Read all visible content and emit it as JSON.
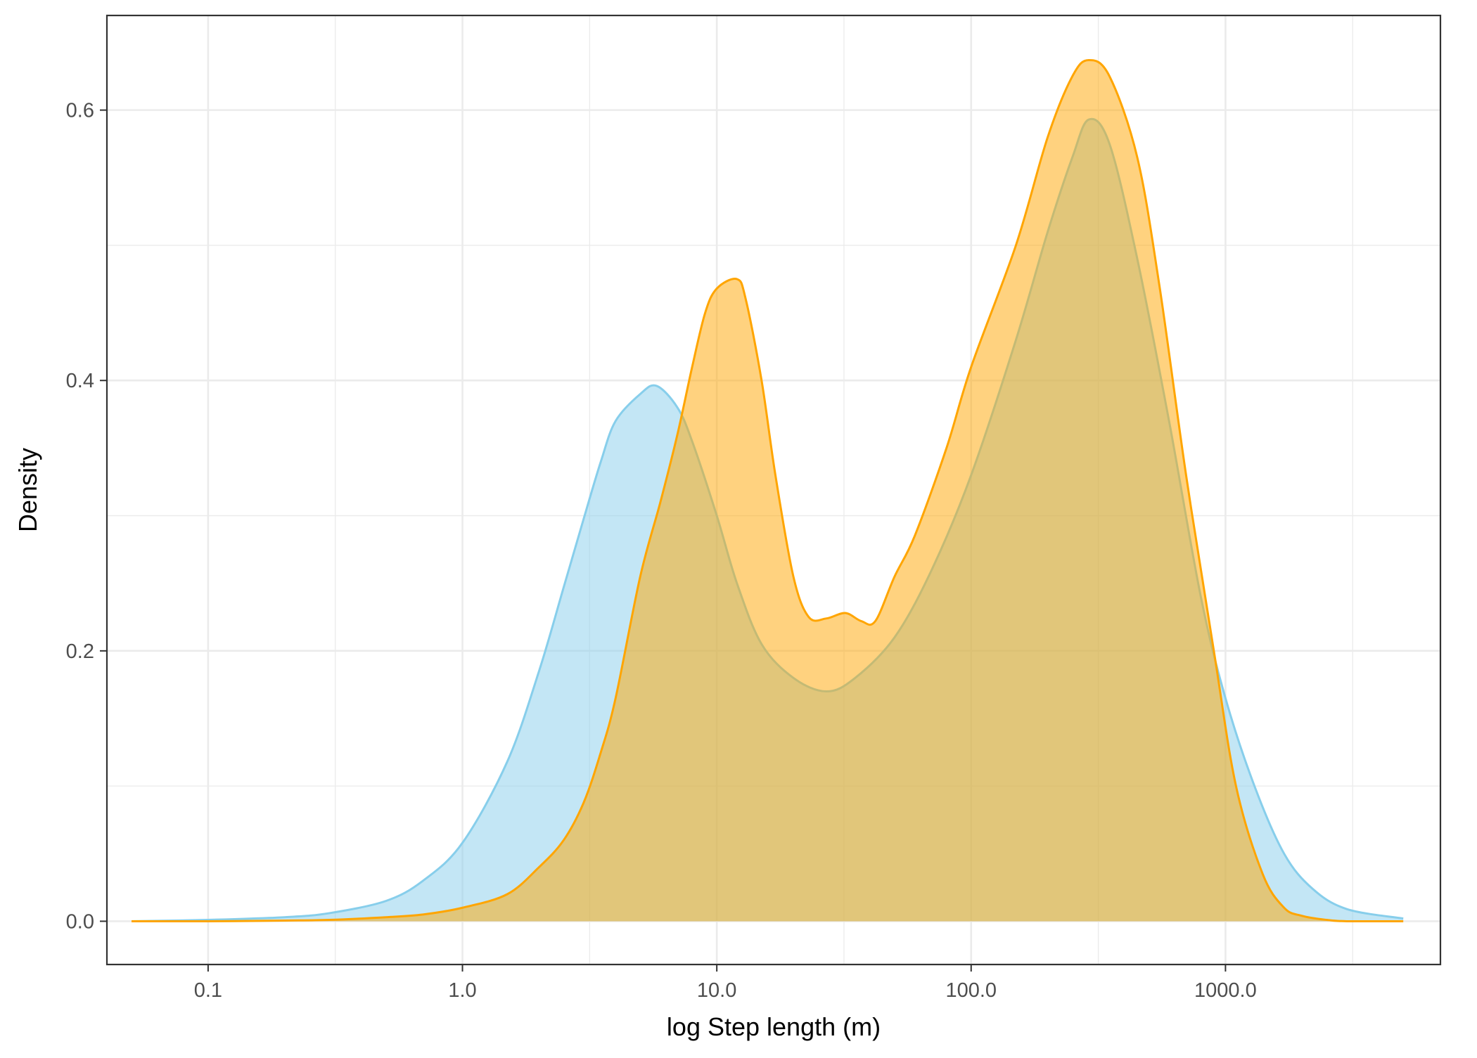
{
  "chart_data": {
    "type": "area",
    "title": "",
    "xlabel": "log Step length (m)",
    "ylabel": "Density",
    "x_scale": "log10",
    "xlim": [
      0.04,
      7000
    ],
    "ylim": [
      -0.032,
      0.67
    ],
    "x_ticks": [
      0.1,
      1,
      10,
      100,
      1000
    ],
    "x_tick_labels": [
      "0.1",
      "1.0",
      "10.0",
      "100.0",
      "1000.0"
    ],
    "y_ticks": [
      0,
      0.2,
      0.4,
      0.6
    ],
    "y_tick_labels": [
      "0.0",
      "0.2",
      "0.4",
      "0.6"
    ],
    "grid": true,
    "legend": "none",
    "colors": {
      "blue_fill": "#87ceeb",
      "blue_line": "#87ceeb",
      "orange_fill": "#ffa500",
      "orange_line": "#ffa500"
    },
    "series": [
      {
        "x": [
          0.05,
          0.1,
          0.2,
          0.3,
          0.5,
          0.7,
          1.0,
          1.5,
          2.0,
          2.5,
          3.0,
          3.5,
          4.0,
          5.0,
          5.8,
          7.0,
          8.0,
          10.0,
          12.0,
          15.0,
          20.0,
          27.0,
          35.0,
          50.0,
          70.0,
          100.0,
          150.0,
          200.0,
          250.0,
          290.0,
          350.0,
          450.0,
          600.0,
          800.0,
          1000.0,
          1300.0,
          1700.0,
          2200.0,
          3000.0,
          5000.0
        ],
        "y": [
          0.0,
          0.001,
          0.003,
          0.006,
          0.015,
          0.03,
          0.058,
          0.118,
          0.185,
          0.247,
          0.298,
          0.34,
          0.37,
          0.39,
          0.396,
          0.38,
          0.355,
          0.3,
          0.25,
          0.205,
          0.18,
          0.17,
          0.18,
          0.21,
          0.26,
          0.33,
          0.43,
          0.51,
          0.565,
          0.593,
          0.575,
          0.49,
          0.37,
          0.24,
          0.165,
          0.1,
          0.05,
          0.024,
          0.009,
          0.002
        ]
      },
      {
        "x": [
          0.05,
          0.1,
          0.2,
          0.3,
          0.5,
          0.7,
          1.0,
          1.5,
          2.0,
          2.5,
          3.0,
          3.5,
          4.0,
          5.0,
          6.0,
          7.0,
          8.0,
          9.0,
          10.0,
          12.0,
          13.0,
          15.0,
          17.0,
          20.0,
          23.0,
          27.0,
          32.0,
          37.0,
          42.0,
          50.0,
          60.0,
          80.0,
          100.0,
          150.0,
          200.0,
          250.0,
          290.0,
          350.0,
          450.0,
          550.0,
          700.0,
          900.0,
          1100.0,
          1400.0,
          1700.0,
          2000.0,
          2500.0,
          3000.0,
          5000.0
        ],
        "y": [
          0.0,
          0.0,
          0.0005,
          0.001,
          0.003,
          0.005,
          0.01,
          0.02,
          0.04,
          0.06,
          0.088,
          0.125,
          0.165,
          0.255,
          0.31,
          0.36,
          0.41,
          0.45,
          0.468,
          0.475,
          0.46,
          0.4,
          0.33,
          0.255,
          0.225,
          0.224,
          0.228,
          0.222,
          0.222,
          0.255,
          0.285,
          0.35,
          0.41,
          0.5,
          0.58,
          0.625,
          0.637,
          0.625,
          0.565,
          0.47,
          0.33,
          0.2,
          0.1,
          0.035,
          0.01,
          0.004,
          0.001,
          0.0,
          0.0
        ]
      }
    ]
  }
}
